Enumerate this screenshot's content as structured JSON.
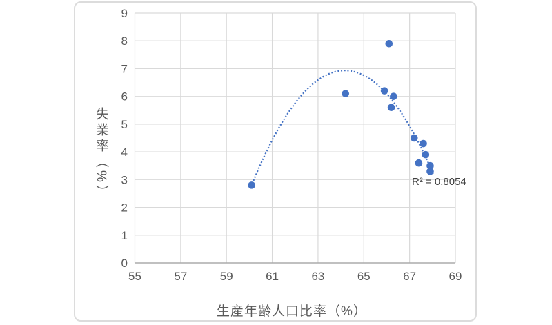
{
  "chart_data": {
    "type": "scatter",
    "title": "",
    "xlabel": "生産年齢人口比率（%）",
    "ylabel": "失業率（%）",
    "xlim": [
      55,
      69
    ],
    "ylim": [
      0,
      9
    ],
    "x_ticks": [
      55,
      57,
      59,
      61,
      63,
      65,
      67,
      69
    ],
    "y_ticks": [
      0,
      1,
      2,
      3,
      4,
      5,
      6,
      7,
      8,
      9
    ],
    "grid": true,
    "legend": "none",
    "points": [
      [
        60.1,
        2.8
      ],
      [
        64.2,
        6.1
      ],
      [
        65.9,
        6.2
      ],
      [
        66.1,
        7.9
      ],
      [
        66.3,
        6.0
      ],
      [
        66.2,
        5.6
      ],
      [
        67.2,
        4.5
      ],
      [
        67.6,
        4.3
      ],
      [
        67.7,
        3.9
      ],
      [
        67.4,
        3.6
      ],
      [
        67.9,
        3.5
      ],
      [
        67.9,
        3.3
      ]
    ],
    "trendline": {
      "type": "polynomial",
      "degree": 2,
      "a": -0.24976,
      "b": 32.053,
      "c": -1021.45,
      "x_start": 60.18,
      "x_end": 68.03,
      "peak": [
        64.2,
        6.9
      ],
      "style": "dotted"
    },
    "annotation": {
      "text": "R² = 0.8054",
      "r_squared": 0.8054
    },
    "colors": {
      "point": "#4472C4",
      "trendline": "#4472C4",
      "gridline": "#d9d9d9",
      "axis_line": "#ababab",
      "tick_label": "#595959",
      "axis_title": "#595959",
      "annotation_text": "#404040",
      "panel_border": "#dcdcdc",
      "background": "#ffffff"
    }
  }
}
